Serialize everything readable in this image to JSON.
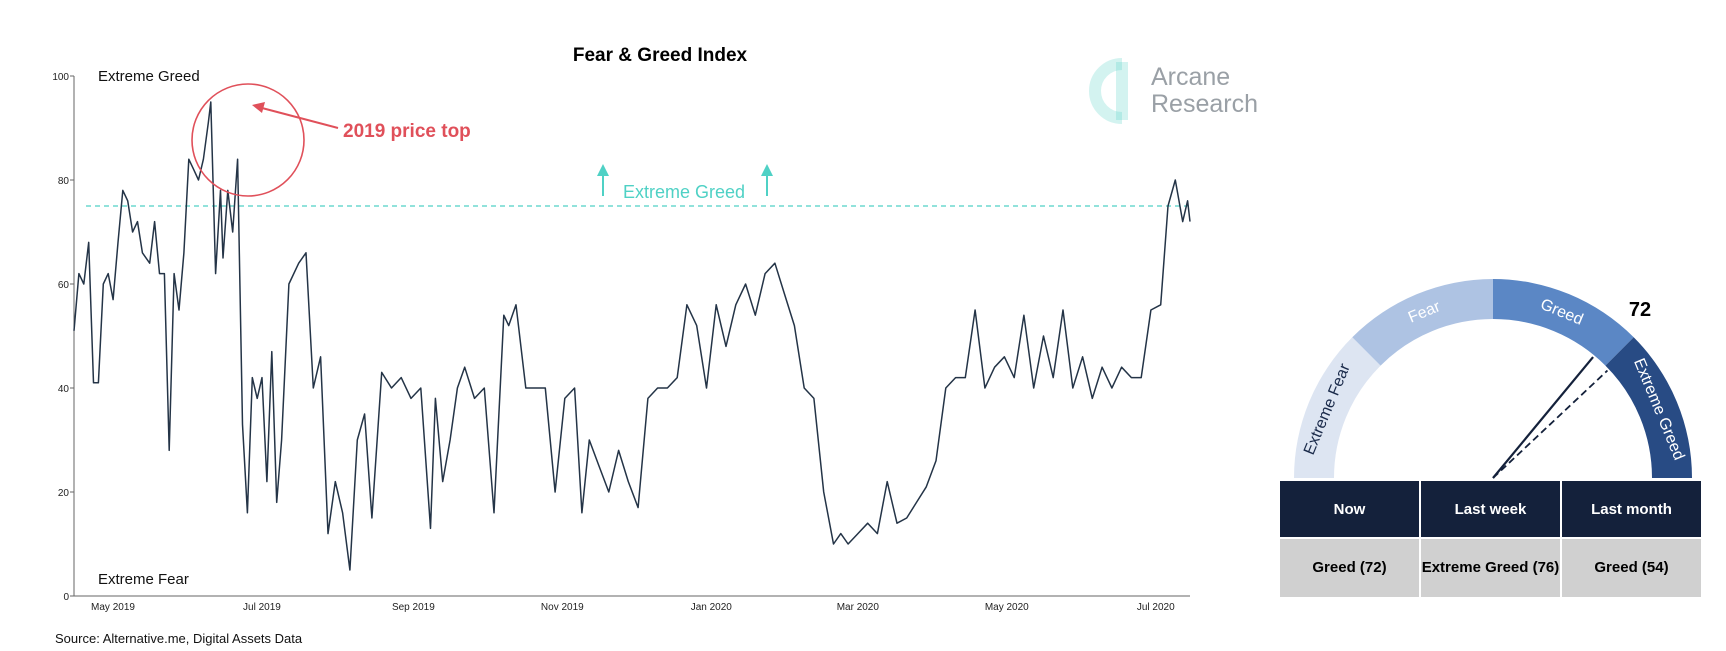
{
  "chart_data": {
    "type": "line",
    "title": "Fear & Greed Index",
    "xlabel": "",
    "ylabel": "",
    "ylim": [
      0,
      100
    ],
    "yticks": [
      0,
      20,
      40,
      60,
      80,
      100
    ],
    "xtick_labels": [
      "May 2019",
      "Jul 2019",
      "Sep 2019",
      "Nov 2019",
      "Jan 2020",
      "Mar 2020",
      "May 2020",
      "Jul 2020"
    ],
    "x_start": "2019-05-01",
    "x_end": "2020-07-31",
    "zone_labels": {
      "top": "Extreme Greed",
      "bottom": "Extreme Fear"
    },
    "threshold": {
      "value": 75,
      "label": "Extreme Greed",
      "color": "#4fd1c5",
      "style": "dashed"
    },
    "annotation": {
      "text": "2019 price top",
      "color": "#e0505a",
      "target_x": "2019-06-26",
      "target_y": 95
    },
    "line_color": "#243447",
    "grid": false,
    "series": [
      {
        "x": [
          "2019-05-01",
          "2019-05-03",
          "2019-05-05",
          "2019-05-07",
          "2019-05-09",
          "2019-05-11",
          "2019-05-13",
          "2019-05-15",
          "2019-05-17",
          "2019-05-19",
          "2019-05-21",
          "2019-05-23",
          "2019-05-25",
          "2019-05-27",
          "2019-05-29",
          "2019-06-01",
          "2019-06-03",
          "2019-06-05",
          "2019-06-07",
          "2019-06-09",
          "2019-06-11",
          "2019-06-13",
          "2019-06-15",
          "2019-06-17",
          "2019-06-19",
          "2019-06-21",
          "2019-06-23",
          "2019-06-25",
          "2019-06-26",
          "2019-06-28",
          "2019-06-30",
          "2019-07-01",
          "2019-07-03",
          "2019-07-05",
          "2019-07-07",
          "2019-07-09",
          "2019-07-11",
          "2019-07-13",
          "2019-07-15",
          "2019-07-17",
          "2019-07-19",
          "2019-07-21",
          "2019-07-23",
          "2019-07-25",
          "2019-07-28",
          "2019-08-01",
          "2019-08-04",
          "2019-08-07",
          "2019-08-10",
          "2019-08-13",
          "2019-08-16",
          "2019-08-19",
          "2019-08-22",
          "2019-08-25",
          "2019-08-28",
          "2019-08-31",
          "2019-09-04",
          "2019-09-08",
          "2019-09-12",
          "2019-09-16",
          "2019-09-20",
          "2019-09-24",
          "2019-09-26",
          "2019-09-29",
          "2019-10-02",
          "2019-10-05",
          "2019-10-08",
          "2019-10-12",
          "2019-10-16",
          "2019-10-20",
          "2019-10-24",
          "2019-10-26",
          "2019-10-29",
          "2019-11-02",
          "2019-11-06",
          "2019-11-10",
          "2019-11-14",
          "2019-11-18",
          "2019-11-22",
          "2019-11-25",
          "2019-11-28",
          "2019-12-02",
          "2019-12-06",
          "2019-12-10",
          "2019-12-14",
          "2019-12-18",
          "2019-12-22",
          "2019-12-26",
          "2019-12-30",
          "2020-01-03",
          "2020-01-07",
          "2020-01-11",
          "2020-01-15",
          "2020-01-19",
          "2020-01-23",
          "2020-01-27",
          "2020-01-31",
          "2020-02-04",
          "2020-02-08",
          "2020-02-12",
          "2020-02-16",
          "2020-02-20",
          "2020-02-24",
          "2020-02-28",
          "2020-03-03",
          "2020-03-07",
          "2020-03-10",
          "2020-03-13",
          "2020-03-17",
          "2020-03-21",
          "2020-03-25",
          "2020-03-29",
          "2020-04-02",
          "2020-04-06",
          "2020-04-10",
          "2020-04-14",
          "2020-04-18",
          "2020-04-22",
          "2020-04-26",
          "2020-04-30",
          "2020-05-04",
          "2020-05-08",
          "2020-05-12",
          "2020-05-16",
          "2020-05-20",
          "2020-05-24",
          "2020-05-28",
          "2020-06-01",
          "2020-06-05",
          "2020-06-09",
          "2020-06-13",
          "2020-06-17",
          "2020-06-21",
          "2020-06-25",
          "2020-06-29",
          "2020-07-03",
          "2020-07-07",
          "2020-07-11",
          "2020-07-15",
          "2020-07-19",
          "2020-07-22",
          "2020-07-25",
          "2020-07-28",
          "2020-07-30",
          "2020-07-31"
        ],
        "y": [
          51,
          62,
          60,
          68,
          41,
          41,
          60,
          62,
          57,
          68,
          78,
          76,
          70,
          72,
          66,
          64,
          72,
          62,
          62,
          28,
          62,
          55,
          66,
          84,
          82,
          80,
          84,
          91,
          95,
          62,
          78,
          65,
          78,
          70,
          84,
          33,
          16,
          42,
          38,
          42,
          22,
          47,
          18,
          30,
          60,
          64,
          66,
          40,
          46,
          12,
          22,
          16,
          5,
          30,
          35,
          15,
          43,
          40,
          42,
          38,
          40,
          13,
          38,
          22,
          30,
          40,
          44,
          38,
          40,
          16,
          54,
          52,
          56,
          40,
          40,
          40,
          20,
          38,
          40,
          16,
          30,
          25,
          20,
          28,
          22,
          17,
          38,
          40,
          40,
          42,
          56,
          52,
          40,
          56,
          48,
          56,
          60,
          54,
          62,
          64,
          58,
          52,
          40,
          38,
          20,
          10,
          12,
          10,
          12,
          14,
          12,
          22,
          14,
          15,
          18,
          21,
          26,
          40,
          42,
          42,
          55,
          40,
          44,
          46,
          42,
          54,
          40,
          50,
          42,
          55,
          40,
          46,
          38,
          44,
          40,
          44,
          42,
          42,
          55,
          56,
          75,
          80,
          72,
          76,
          72
        ]
      }
    ]
  },
  "logo": {
    "line1": "Arcane",
    "line2": "Research",
    "color": "#4fd1c5"
  },
  "gauge": {
    "value": 72,
    "last_week": 76,
    "segments": [
      {
        "label": "Extreme Fear",
        "color": "#dde5f2"
      },
      {
        "label": "Fear",
        "color": "#aec3e3"
      },
      {
        "label": "Greed",
        "color": "#5b87c5"
      },
      {
        "label": "Extreme Greed",
        "color": "#284b84"
      }
    ]
  },
  "table": {
    "headers": [
      "Now",
      "Last week",
      "Last month"
    ],
    "values": [
      "Greed (72)",
      "Extreme Greed (76)",
      "Greed (54)"
    ]
  },
  "source": "Source: Alternative.me, Digital Assets Data"
}
